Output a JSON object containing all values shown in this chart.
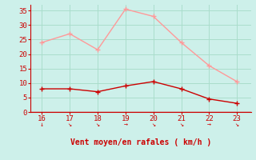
{
  "x": [
    16,
    17,
    18,
    19,
    20,
    21,
    22,
    23
  ],
  "y_moyen": [
    8,
    8,
    7,
    9,
    10.5,
    8,
    4.5,
    3
  ],
  "y_rafales": [
    24,
    27,
    21.5,
    35.5,
    33,
    24,
    16,
    10.5
  ],
  "color_moyen": "#cc0000",
  "color_rafales": "#ff9999",
  "xlabel": "Vent moyen/en rafales ( km/h )",
  "xlabel_color": "#cc0000",
  "background_color": "#cdf0ea",
  "grid_color": "#aaddcc",
  "ylim": [
    0,
    37
  ],
  "xlim": [
    15.6,
    23.5
  ],
  "yticks": [
    0,
    5,
    10,
    15,
    20,
    25,
    30,
    35
  ],
  "xticks": [
    16,
    17,
    18,
    19,
    20,
    21,
    22,
    23
  ],
  "tick_color": "#cc0000",
  "axis_color": "#cc0000",
  "arrow_symbols": [
    "↓",
    "↘",
    "↘",
    "→",
    "↘",
    "↘",
    "→",
    "↘"
  ]
}
